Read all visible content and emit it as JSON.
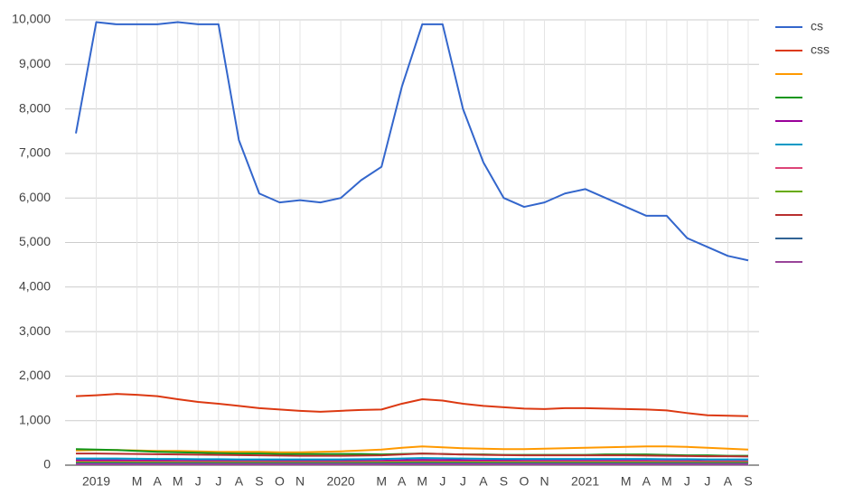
{
  "chart_data": {
    "type": "line",
    "x": [
      "2018-12",
      "2019-01",
      "2019-02",
      "2019-03",
      "2019-04",
      "2019-05",
      "2019-06",
      "2019-07",
      "2019-08",
      "2019-09",
      "2019-10",
      "2019-11",
      "2019-12",
      "2020-01",
      "2020-02",
      "2020-03",
      "2020-04",
      "2020-05",
      "2020-06",
      "2020-07",
      "2020-08",
      "2020-09",
      "2020-10",
      "2020-11",
      "2020-12",
      "2021-01",
      "2021-02",
      "2021-03",
      "2021-04",
      "2021-05",
      "2021-06",
      "2021-07",
      "2021-08",
      "2021-09"
    ],
    "series": [
      {
        "name": "cs",
        "color": "#3366cc",
        "values": [
          7450,
          9950,
          9900,
          9900,
          9900,
          9950,
          9900,
          9900,
          7300,
          6100,
          5900,
          5950,
          5900,
          6000,
          6400,
          6700,
          8500,
          9900,
          9900,
          8000,
          6800,
          6000,
          5800,
          5900,
          6100,
          6200,
          6000,
          5800,
          5600,
          5600,
          5100,
          4900,
          4700,
          4600
        ]
      },
      {
        "name": "css",
        "color": "#dc3912",
        "values": [
          1550,
          1570,
          1600,
          1580,
          1550,
          1480,
          1420,
          1380,
          1330,
          1280,
          1250,
          1220,
          1200,
          1220,
          1240,
          1250,
          1380,
          1480,
          1450,
          1380,
          1330,
          1300,
          1270,
          1260,
          1280,
          1280,
          1270,
          1260,
          1250,
          1230,
          1170,
          1120,
          1110,
          1100
        ]
      },
      {
        "color": "#ff9900",
        "values": [
          330,
          340,
          340,
          330,
          320,
          320,
          310,
          300,
          300,
          300,
          290,
          290,
          300,
          310,
          330,
          350,
          390,
          420,
          400,
          380,
          370,
          360,
          360,
          370,
          380,
          390,
          400,
          410,
          420,
          420,
          410,
          390,
          370,
          350
        ]
      },
      {
        "color": "#109618",
        "values": [
          360,
          350,
          340,
          320,
          300,
          290,
          280,
          270,
          260,
          260,
          250,
          250,
          250,
          250,
          250,
          240,
          250,
          260,
          250,
          240,
          240,
          230,
          230,
          230,
          230,
          230,
          240,
          240,
          240,
          230,
          220,
          220,
          210,
          210
        ]
      },
      {
        "color": "#990099",
        "values": [
          110,
          110,
          110,
          105,
          105,
          100,
          100,
          100,
          100,
          100,
          95,
          95,
          95,
          95,
          100,
          100,
          110,
          120,
          115,
          110,
          105,
          105,
          100,
          100,
          100,
          100,
          100,
          100,
          100,
          95,
          95,
          90,
          90,
          90
        ]
      },
      {
        "color": "#0099c6",
        "values": [
          150,
          150,
          150,
          145,
          140,
          140,
          135,
          135,
          130,
          130,
          130,
          130,
          130,
          130,
          135,
          140,
          150,
          160,
          155,
          150,
          145,
          140,
          140,
          140,
          140,
          140,
          140,
          140,
          140,
          135,
          135,
          130,
          130,
          130
        ]
      },
      {
        "color": "#dd4477",
        "values": [
          80,
          80,
          80,
          80,
          78,
          78,
          76,
          76,
          75,
          75,
          74,
          74,
          74,
          74,
          76,
          78,
          82,
          86,
          84,
          82,
          80,
          80,
          80,
          80,
          80,
          80,
          80,
          80,
          80,
          78,
          78,
          76,
          76,
          76
        ]
      },
      {
        "color": "#66aa00",
        "values": [
          60,
          60,
          60,
          58,
          58,
          56,
          56,
          55,
          55,
          55,
          54,
          54,
          54,
          54,
          56,
          58,
          62,
          64,
          62,
          60,
          60,
          58,
          58,
          58,
          58,
          58,
          58,
          58,
          58,
          56,
          56,
          55,
          55,
          55
        ]
      },
      {
        "color": "#b82e2e",
        "values": [
          260,
          260,
          255,
          250,
          245,
          240,
          235,
          230,
          225,
          220,
          215,
          210,
          210,
          210,
          215,
          220,
          240,
          260,
          250,
          240,
          230,
          225,
          220,
          220,
          220,
          220,
          220,
          220,
          215,
          210,
          205,
          200,
          200,
          195
        ]
      },
      {
        "color": "#316395",
        "values": [
          40,
          40,
          40,
          38,
          38,
          37,
          37,
          36,
          36,
          36,
          35,
          35,
          35,
          35,
          36,
          37,
          40,
          42,
          41,
          40,
          39,
          38,
          38,
          38,
          38,
          38,
          38,
          38,
          38,
          37,
          37,
          36,
          36,
          36
        ]
      },
      {
        "color": "#994499",
        "values": [
          20,
          20,
          20,
          19,
          19,
          19,
          18,
          18,
          18,
          18,
          18,
          18,
          18,
          18,
          18,
          19,
          20,
          21,
          21,
          20,
          20,
          19,
          19,
          19,
          19,
          19,
          19,
          19,
          19,
          19,
          18,
          18,
          18,
          18
        ]
      }
    ],
    "xlim": [
      "2018-12",
      "2021-09"
    ],
    "xticks": [
      {
        "value": "2019-01",
        "label": "2019"
      },
      {
        "value": "2019-03",
        "label": "M"
      },
      {
        "value": "2019-04",
        "label": "A"
      },
      {
        "value": "2019-05",
        "label": "M"
      },
      {
        "value": "2019-06",
        "label": "J"
      },
      {
        "value": "2019-07",
        "label": "J"
      },
      {
        "value": "2019-08",
        "label": "A"
      },
      {
        "value": "2019-09",
        "label": "S"
      },
      {
        "value": "2019-10",
        "label": "O"
      },
      {
        "value": "2019-11",
        "label": "N"
      },
      {
        "value": "2020-01",
        "label": "2020"
      },
      {
        "value": "2020-03",
        "label": "M"
      },
      {
        "value": "2020-04",
        "label": "A"
      },
      {
        "value": "2020-05",
        "label": "M"
      },
      {
        "value": "2020-06",
        "label": "J"
      },
      {
        "value": "2020-07",
        "label": "J"
      },
      {
        "value": "2020-08",
        "label": "A"
      },
      {
        "value": "2020-09",
        "label": "S"
      },
      {
        "value": "2020-10",
        "label": "O"
      },
      {
        "value": "2020-11",
        "label": "N"
      },
      {
        "value": "2021-01",
        "label": "2021"
      },
      {
        "value": "2021-03",
        "label": "M"
      },
      {
        "value": "2021-04",
        "label": "A"
      },
      {
        "value": "2021-05",
        "label": "M"
      },
      {
        "value": "2021-06",
        "label": "J"
      },
      {
        "value": "2021-07",
        "label": "J"
      },
      {
        "value": "2021-08",
        "label": "A"
      },
      {
        "value": "2021-09",
        "label": "S"
      }
    ],
    "ylim": [
      0,
      10000
    ],
    "yticks": [
      0,
      {
        "value": 1000,
        "label": "1,000"
      },
      {
        "value": 2000,
        "label": "2,000"
      },
      {
        "value": 3000,
        "label": "3,000"
      },
      {
        "value": 4000,
        "label": "4,000"
      },
      {
        "value": 5000,
        "label": "5,000"
      },
      {
        "value": 6000,
        "label": "6,000"
      },
      {
        "value": 7000,
        "label": "7,000"
      },
      {
        "value": 8000,
        "label": "8,000"
      },
      {
        "value": 9000,
        "label": "9,000"
      },
      {
        "value": 10000,
        "label": "10,000"
      }
    ],
    "grid": true
  }
}
